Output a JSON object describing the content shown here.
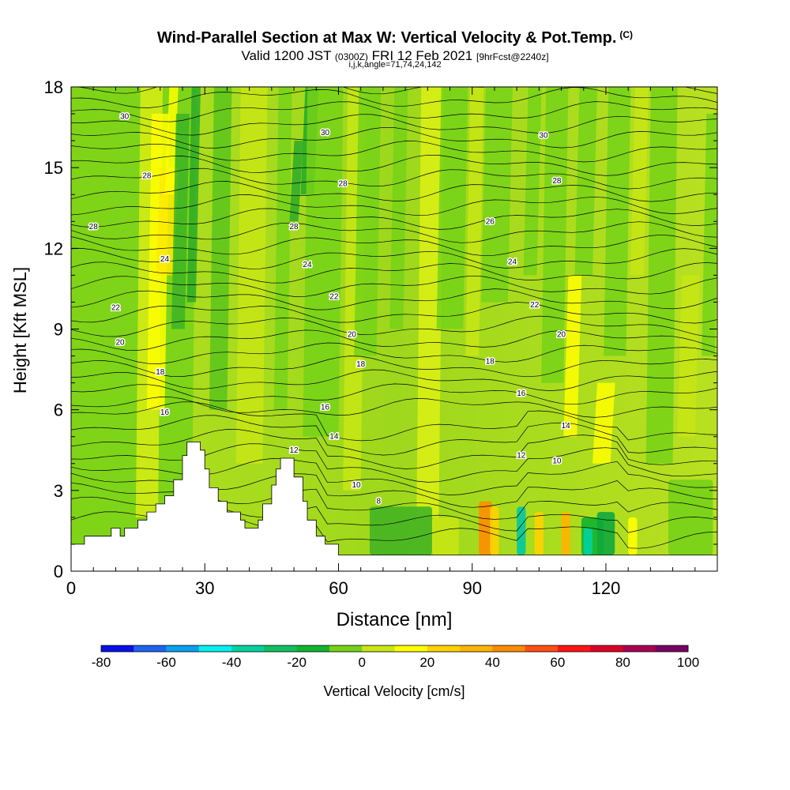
{
  "header": {
    "title": "Wind-Parallel Section at Max W: Vertical Velocity & Pot.Temp.",
    "title_units": "(C)",
    "valid_prefix": "Valid 1200 JST",
    "valid_utc": "(0300Z)",
    "valid_date": "FRI 12 Feb 2021",
    "forecast_info": "[9hrFcst@2240z]",
    "section_info": "i,j,k,angle=71,74,24,142"
  },
  "chart_data": {
    "type": "heatmap",
    "xlabel": "Distance [nm]",
    "ylabel": "Height [Kft MSL]",
    "xlim": [
      0,
      145
    ],
    "ylim": [
      0,
      18
    ],
    "x_ticks": [
      0,
      30,
      60,
      90,
      120
    ],
    "y_ticks": [
      0,
      3,
      6,
      9,
      12,
      15,
      18
    ],
    "colorbar": {
      "label": "Vertical Velocity [cm/s]",
      "levels": [
        -80,
        -70,
        -60,
        -50,
        -40,
        -30,
        -20,
        -10,
        0,
        10,
        20,
        30,
        40,
        50,
        60,
        70,
        80,
        90,
        100
      ],
      "tick_labels": [
        "-80",
        "-60",
        "-40",
        "-20",
        "0",
        "20",
        "40",
        "60",
        "80",
        "100"
      ],
      "colors": [
        "#0a10e6",
        "#1e64f0",
        "#0aa0f0",
        "#00f0f0",
        "#00d2a0",
        "#10c060",
        "#10b42c",
        "#76d218",
        "#c8e614",
        "#ffff00",
        "#ffd200",
        "#ffb400",
        "#ff8c00",
        "#ff5014",
        "#ff1414",
        "#dc0028",
        "#aa0050",
        "#780064"
      ]
    },
    "contours": {
      "field": "Potential Temperature (C)",
      "labels": [
        {
          "value": "30",
          "x": 12,
          "y": 16.9
        },
        {
          "value": "30",
          "x": 57,
          "y": 16.3
        },
        {
          "value": "30",
          "x": 106,
          "y": 16.2
        },
        {
          "value": "28",
          "x": 17,
          "y": 14.7
        },
        {
          "value": "28",
          "x": 61,
          "y": 14.4
        },
        {
          "value": "28",
          "x": 109,
          "y": 14.5
        },
        {
          "value": "28",
          "x": 5,
          "y": 12.8
        },
        {
          "value": "28",
          "x": 50,
          "y": 12.8
        },
        {
          "value": "26",
          "x": 94,
          "y": 13
        },
        {
          "value": "24",
          "x": 21,
          "y": 11.6
        },
        {
          "value": "24",
          "x": 53,
          "y": 11.4
        },
        {
          "value": "24",
          "x": 99,
          "y": 11.5
        },
        {
          "value": "22",
          "x": 10,
          "y": 9.8
        },
        {
          "value": "22",
          "x": 59,
          "y": 10.2
        },
        {
          "value": "22",
          "x": 104,
          "y": 9.9
        },
        {
          "value": "20",
          "x": 11,
          "y": 8.5
        },
        {
          "value": "20",
          "x": 63,
          "y": 8.8
        },
        {
          "value": "20",
          "x": 110,
          "y": 8.8
        },
        {
          "value": "18",
          "x": 20,
          "y": 7.4
        },
        {
          "value": "18",
          "x": 65,
          "y": 7.7
        },
        {
          "value": "18",
          "x": 94,
          "y": 7.8
        },
        {
          "value": "16",
          "x": 21,
          "y": 5.9
        },
        {
          "value": "16",
          "x": 57,
          "y": 6.1
        },
        {
          "value": "16",
          "x": 101,
          "y": 6.6
        },
        {
          "value": "14",
          "x": 59,
          "y": 5
        },
        {
          "value": "14",
          "x": 111,
          "y": 5.4
        },
        {
          "value": "12",
          "x": 50,
          "y": 4.5
        },
        {
          "value": "12",
          "x": 101,
          "y": 4.3
        },
        {
          "value": "10",
          "x": 64,
          "y": 3.2
        },
        {
          "value": "10",
          "x": 109,
          "y": 4.1
        },
        {
          "value": "8",
          "x": 69,
          "y": 2.6
        }
      ]
    },
    "grid": false,
    "legend": "bottom"
  }
}
